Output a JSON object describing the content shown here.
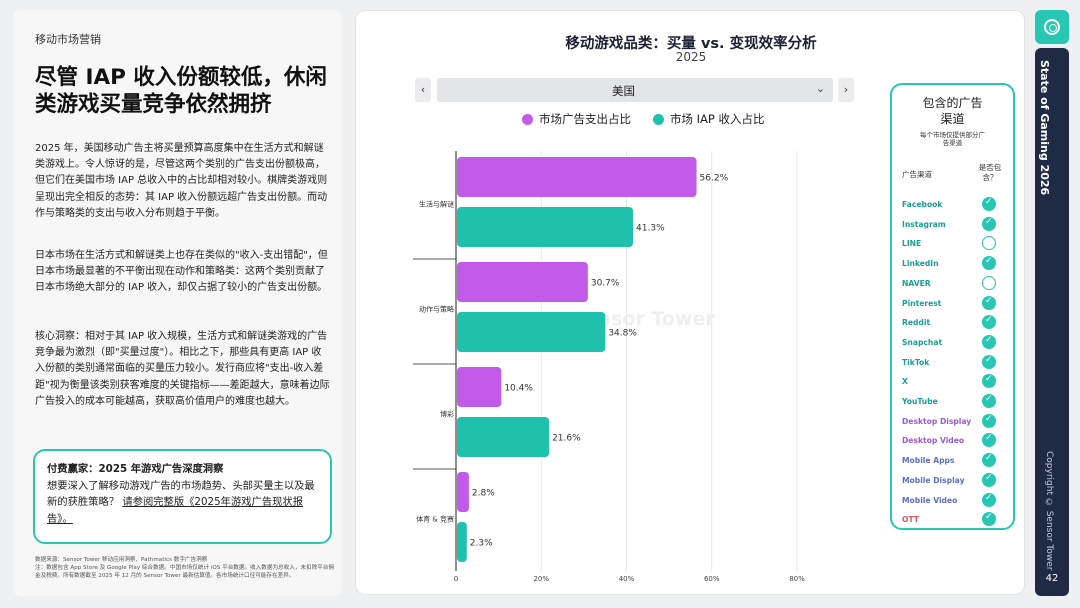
{
  "left": {
    "section_tag": "移动市场营销",
    "headline": "尽管 IAP 收入份额较低，休闲类游戏买量竞争依然拥挤",
    "paragraphs": [
      "2025 年，美国移动广告主将买量预算高度集中在生活方式和解谜类游戏上。令人惊讶的是，尽管这两个类别的广告支出份额极高，但它们在美国市场 IAP 总收入中的占比却相对较小。棋牌类游戏则呈现出完全相反的态势：其 IAP 收入份额远超广告支出份额。而动作与策略类的支出与收入分布则趋于平衡。",
      "日本市场在生活方式和解谜类上也存在类似的\"收入-支出错配\"，但日本市场最显著的不平衡出现在动作和策略类：这两个类别贡献了日本市场绝大部分的 IAP 收入，却仅占据了较小的广告支出份额。",
      "核心洞察：相对于其 IAP 收入规模，生活方式和解谜类游戏的广告竞争最为激烈（即\"买量过度\"）。相比之下，那些具有更高 IAP 收入份额的类别通常面临的买量压力较小。发行商应将\"支出-收入差距\"视为衡量该类别获客难度的关键指标——差距越大，意味着边际广告投入的成本可能越高，获取高价值用户的难度也越大。"
    ],
    "cta_bold": "付费赢家：2025 年游戏广告深度洞察",
    "cta_text": "想要深入了解移动游戏广告的市场趋势、头部买量主以及最新的获胜策略？",
    "cta_link": "请参阅完整版《2025年游戏广告现状报告》。",
    "footnote": "数据来源：Sensor Tower 移动应用洞察、Pathmatics 数字广告洞察\n注：数据包含 App Store 及 Google Play 综合数据。中国市场仅统计 iOS 平台数据。收入数据为总收入，未扣除平台佣金及税费。所有数据截至 2025 年 12 月的 Sensor Tower 最新估算值。各市场统计口径可能存在差异。"
  },
  "chart": {
    "title": "移动游戏品类：买量 vs. 变现效率分析",
    "subtitle": "2025",
    "selector_value": "美国",
    "prev_glyph": "‹",
    "next_glyph": "›",
    "caret_glyph": "⌄",
    "watermark": "Sensor Tower"
  },
  "chart_data": {
    "type": "bar",
    "orientation": "horizontal",
    "categories": [
      "生活与解谜",
      "动作与策略",
      "博彩",
      "体育 & 竞赛"
    ],
    "series": [
      {
        "name": "市场广告支出占比",
        "color": "#c25bea",
        "values": [
          56.2,
          30.7,
          10.4,
          2.8
        ]
      },
      {
        "name": "市场 IAP 收入占比",
        "color": "#1fc1ac",
        "values": [
          41.3,
          34.8,
          21.6,
          2.3
        ]
      }
    ],
    "x_ticks": [
      "0",
      "20%",
      "40%",
      "60%",
      "80%"
    ],
    "xlim": [
      0,
      80
    ],
    "value_suffix": "%",
    "legend_position": "top"
  },
  "channels": {
    "title": "包含的广告渠道",
    "subtitle": "每个市场仅提供部分广告渠道",
    "col_channel": "广告渠道",
    "col_included": "是否包含？",
    "items": [
      {
        "name": "Facebook",
        "color": "#1a9e95",
        "included": true
      },
      {
        "name": "Instagram",
        "color": "#1a9e95",
        "included": true
      },
      {
        "name": "LINE",
        "color": "#1a9e95",
        "included": false
      },
      {
        "name": "LinkedIn",
        "color": "#1a9e95",
        "included": true
      },
      {
        "name": "NAVER",
        "color": "#1a9e95",
        "included": false
      },
      {
        "name": "Pinterest",
        "color": "#1a9e95",
        "included": true
      },
      {
        "name": "Reddit",
        "color": "#1a9e95",
        "included": true
      },
      {
        "name": "Snapchat",
        "color": "#1a9e95",
        "included": true
      },
      {
        "name": "TikTok",
        "color": "#1a9e95",
        "included": true
      },
      {
        "name": "X",
        "color": "#1a9e95",
        "included": true
      },
      {
        "name": "YouTube",
        "color": "#1a9e95",
        "included": true
      },
      {
        "name": "Desktop Display",
        "color": "#9a5ad6",
        "included": true
      },
      {
        "name": "Desktop Video",
        "color": "#9a5ad6",
        "included": true
      },
      {
        "name": "Mobile Apps",
        "color": "#5b6ec9",
        "included": true
      },
      {
        "name": "Mobile Display",
        "color": "#5b6ec9",
        "included": true
      },
      {
        "name": "Mobile Video",
        "color": "#5b6ec9",
        "included": true
      },
      {
        "name": "OTT",
        "color": "#e0525e",
        "included": true
      }
    ]
  },
  "sidebar": {
    "vertical_title": "State of Gaming 2026",
    "copyright": "Copyright © Sensor Tower",
    "page_number": "42"
  }
}
